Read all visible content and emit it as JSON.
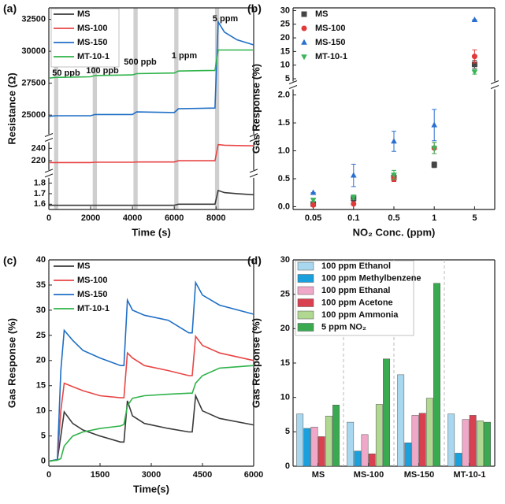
{
  "chart_data": [
    {
      "type": "line",
      "panel_label": "(a)",
      "xlabel": "Time (s)",
      "ylabel": "Resistance (Ω)",
      "x": [
        0,
        300,
        2000,
        2200,
        4000,
        4200,
        6000,
        6200,
        7950,
        8100,
        8400,
        9000,
        9800
      ],
      "xlim": [
        0,
        9800
      ],
      "xticks": [
        0,
        2000,
        4000,
        6000,
        8000
      ],
      "y_segments": [
        {
          "ylim": [
            1.55,
            1.85
          ],
          "yticks": [
            1.6,
            1.7,
            1.8
          ]
        },
        {
          "ylim": [
            205,
            250
          ],
          "yticks": [
            220,
            240
          ]
        },
        {
          "ylim": [
            23500,
            33400
          ],
          "yticks": [
            25000,
            27500,
            30000,
            32500
          ]
        }
      ],
      "exposure_windows": [
        [
          250,
          450
        ],
        [
          2100,
          2300
        ],
        [
          4050,
          4250
        ],
        [
          6000,
          6200
        ],
        [
          7950,
          8150
        ]
      ],
      "annotations": [
        "50 ppb",
        "100 ppb",
        "500 ppb",
        "1 ppm",
        "5 ppm"
      ],
      "legend": "upper left",
      "series": [
        {
          "name": "MS",
          "color": "#3a3a3a",
          "segment": 0,
          "values": [
            1.59,
            1.59,
            1.59,
            1.59,
            1.59,
            1.59,
            1.59,
            1.6,
            1.6,
            1.73,
            1.71,
            1.7,
            1.69
          ]
        },
        {
          "name": "MS-100",
          "color": "#e84545",
          "segment": 1,
          "values": [
            217,
            217,
            217,
            217.5,
            217.5,
            218,
            218,
            220,
            220,
            246,
            245,
            244.5,
            244
          ]
        },
        {
          "name": "MS-150",
          "color": "#1f6fc5",
          "segment": 2,
          "values": [
            24900,
            24950,
            24950,
            25050,
            25050,
            25250,
            25200,
            25500,
            25550,
            32300,
            31500,
            30900,
            30500
          ]
        },
        {
          "name": "MT-10-1",
          "color": "#2fb34a",
          "segment": 2,
          "values": [
            27900,
            27950,
            28000,
            28100,
            28150,
            28250,
            28300,
            28450,
            28500,
            30100,
            30100,
            30100,
            30100
          ]
        }
      ]
    },
    {
      "type": "scatter",
      "panel_label": "(b)",
      "xlabel": "NO₂ Conc. (ppm)",
      "ylabel": "Gas Response (%)",
      "categories": [
        "0.05",
        "0.1",
        "0.5",
        "1",
        "5"
      ],
      "y_segments": [
        {
          "ylim": [
            -0.05,
            2.1
          ],
          "yticks": [
            {
              "value": 0,
              "label": "0.0"
            },
            0.5,
            {
              "value": 1,
              "label": "1.0"
            },
            1.5,
            {
              "value": 2,
              "label": "2.0"
            }
          ]
        },
        {
          "ylim": [
            4,
            31
          ],
          "yticks": [
            5,
            10,
            15,
            20,
            25,
            30
          ]
        }
      ],
      "legend": "upper left",
      "series": [
        {
          "name": "MS",
          "color": "#444444",
          "marker": "square",
          "values": [
            0.05,
            0.15,
            0.52,
            0.75,
            10.3
          ],
          "errors": [
            0.02,
            0.05,
            0.06,
            0.05,
            1.5
          ]
        },
        {
          "name": "MS-100",
          "color": "#e03a3a",
          "marker": "circle",
          "values": [
            0.03,
            0.05,
            0.5,
            1.05,
            13.2
          ],
          "errors": [
            0.02,
            0.02,
            0.05,
            0.1,
            2.4
          ]
        },
        {
          "name": "MS-150",
          "color": "#2a6fd0",
          "marker": "triangle-up",
          "values": [
            0.25,
            0.56,
            1.17,
            1.46,
            26.6
          ],
          "errors": [
            0.0,
            0.2,
            0.18,
            0.28,
            0.0
          ]
        },
        {
          "name": "MT-10-1",
          "color": "#3cb55a",
          "marker": "triangle-down",
          "values": [
            0.12,
            0.17,
            0.57,
            1.05,
            7.5
          ],
          "errors": [
            0.03,
            0.04,
            0.08,
            0.1,
            0.8
          ]
        }
      ]
    },
    {
      "type": "line",
      "panel_label": "(c)",
      "xlabel": "Time(s)",
      "ylabel": "Gas Response (%)",
      "x": [
        0,
        250,
        350,
        450,
        700,
        1000,
        1500,
        2100,
        2200,
        2300,
        2450,
        2800,
        3500,
        4100,
        4200,
        4300,
        4500,
        5000,
        6000
      ],
      "xlim": [
        0,
        6000
      ],
      "xticks": [
        0,
        1500,
        3000,
        4500,
        6000
      ],
      "ylim": [
        -1,
        40
      ],
      "yticks": [
        0,
        5,
        10,
        15,
        20,
        25,
        30,
        35,
        40
      ],
      "legend": "upper left",
      "series": [
        {
          "name": "MS",
          "color": "#3a3a3a",
          "values": [
            0,
            0.3,
            5,
            9.8,
            7.5,
            6.2,
            5,
            3.8,
            3.8,
            12,
            9,
            7.5,
            6.5,
            5.8,
            5.8,
            13,
            10,
            8.5,
            7.2
          ]
        },
        {
          "name": "MS-100",
          "color": "#e84545",
          "values": [
            0,
            0.3,
            10,
            15.5,
            14.8,
            14,
            13,
            12.6,
            12.6,
            21.5,
            20.5,
            19,
            18,
            17,
            17,
            24.8,
            23,
            21.5,
            20
          ]
        },
        {
          "name": "MS-150",
          "color": "#1f6fc5",
          "values": [
            0,
            0.3,
            18,
            26,
            24,
            22,
            20.5,
            19,
            19,
            32,
            30,
            29,
            28,
            25.5,
            25.5,
            35.5,
            33,
            31,
            29.2
          ]
        },
        {
          "name": "MT-10-1",
          "color": "#2fb34a",
          "values": [
            0,
            0.2,
            0.5,
            3,
            5,
            5.8,
            6.5,
            7,
            7.3,
            11,
            12.5,
            13,
            13.3,
            13.5,
            13.5,
            15.5,
            17,
            18.5,
            19
          ]
        }
      ]
    },
    {
      "type": "bar",
      "panel_label": "(d)",
      "ylabel": "Gas Response (%)",
      "categories": [
        "MS",
        "MS-100",
        "MS-150",
        "MT-10-1"
      ],
      "ylim": [
        0,
        30
      ],
      "yticks": [
        0,
        5,
        10,
        15,
        20,
        25,
        30
      ],
      "group_separators": true,
      "legend": "upper left",
      "series": [
        {
          "name": "100 ppm Ethanol",
          "color": "#a8d8f0",
          "values": [
            7.6,
            6.4,
            13.3,
            7.6
          ]
        },
        {
          "name": "100 ppm Methylbenzene",
          "color": "#1aa0dd",
          "values": [
            5.5,
            2.2,
            3.4,
            1.9
          ]
        },
        {
          "name": "100 ppm Ethanal",
          "color": "#f0a8c8",
          "values": [
            5.7,
            4.6,
            7.4,
            6.8
          ]
        },
        {
          "name": "100 ppm Acetone",
          "color": "#d94050",
          "values": [
            4.3,
            1.8,
            7.7,
            7.4
          ]
        },
        {
          "name": "100 ppm Ammonia",
          "color": "#b0d890",
          "values": [
            7.3,
            9.0,
            9.9,
            6.6
          ]
        },
        {
          "name": "5 ppm NO₂",
          "color": "#3aaa50",
          "values": [
            8.9,
            15.6,
            26.6,
            6.4
          ]
        }
      ]
    }
  ]
}
